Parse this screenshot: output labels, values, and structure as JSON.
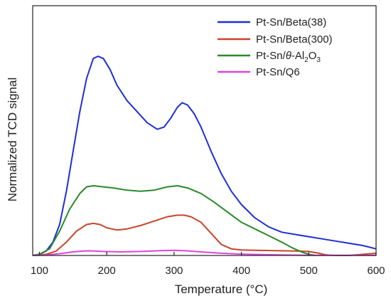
{
  "chart_data": {
    "type": "line",
    "title": "",
    "xlabel": "Temperature (°C)",
    "ylabel": "Normalized TCD signal",
    "xlim": [
      90,
      600
    ],
    "ylim": [
      0,
      1
    ],
    "x_ticks": [
      100,
      200,
      300,
      400,
      500,
      600
    ],
    "y_ticks": [],
    "grid": false,
    "legend_position": "top-right",
    "series": [
      {
        "name": "Pt-Sn/Beta(38)",
        "color": "#1f2fd6",
        "points": [
          [
            90,
            0
          ],
          [
            100,
            0.005
          ],
          [
            110,
            0.02
          ],
          [
            120,
            0.06
          ],
          [
            130,
            0.14
          ],
          [
            140,
            0.29
          ],
          [
            150,
            0.47
          ],
          [
            160,
            0.65
          ],
          [
            170,
            0.8
          ],
          [
            180,
            0.89
          ],
          [
            187,
            0.9
          ],
          [
            195,
            0.89
          ],
          [
            205,
            0.84
          ],
          [
            215,
            0.77
          ],
          [
            230,
            0.7
          ],
          [
            245,
            0.65
          ],
          [
            260,
            0.6
          ],
          [
            275,
            0.57
          ],
          [
            285,
            0.58
          ],
          [
            295,
            0.62
          ],
          [
            305,
            0.67
          ],
          [
            312,
            0.69
          ],
          [
            320,
            0.68
          ],
          [
            330,
            0.64
          ],
          [
            340,
            0.58
          ],
          [
            355,
            0.47
          ],
          [
            370,
            0.37
          ],
          [
            385,
            0.29
          ],
          [
            400,
            0.23
          ],
          [
            420,
            0.17
          ],
          [
            440,
            0.13
          ],
          [
            460,
            0.105
          ],
          [
            480,
            0.095
          ],
          [
            500,
            0.085
          ],
          [
            520,
            0.075
          ],
          [
            540,
            0.065
          ],
          [
            560,
            0.055
          ],
          [
            580,
            0.045
          ],
          [
            600,
            0.03
          ]
        ]
      },
      {
        "name": "Pt-Sn/Beta(300)",
        "color": "#c8452a",
        "points": [
          [
            90,
            0
          ],
          [
            110,
            0.005
          ],
          [
            125,
            0.02
          ],
          [
            140,
            0.06
          ],
          [
            155,
            0.11
          ],
          [
            170,
            0.14
          ],
          [
            180,
            0.145
          ],
          [
            190,
            0.14
          ],
          [
            200,
            0.125
          ],
          [
            215,
            0.115
          ],
          [
            230,
            0.12
          ],
          [
            250,
            0.135
          ],
          [
            270,
            0.155
          ],
          [
            290,
            0.175
          ],
          [
            305,
            0.182
          ],
          [
            315,
            0.182
          ],
          [
            325,
            0.175
          ],
          [
            340,
            0.15
          ],
          [
            355,
            0.1
          ],
          [
            370,
            0.05
          ],
          [
            385,
            0.03
          ],
          [
            400,
            0.025
          ],
          [
            420,
            0.023
          ],
          [
            450,
            0.022
          ],
          [
            480,
            0.02
          ],
          [
            500,
            0.018
          ],
          [
            515,
            0.01
          ],
          [
            525,
            0.003
          ],
          [
            540,
            0
          ],
          [
            560,
            0
          ],
          [
            580,
            0.005
          ],
          [
            600,
            0.01
          ]
        ]
      },
      {
        "name": "Pt-Sn/θ-Al2O3",
        "color": "#2a8a2a",
        "points": [
          [
            90,
            0
          ],
          [
            100,
            0.005
          ],
          [
            115,
            0.03
          ],
          [
            130,
            0.11
          ],
          [
            145,
            0.21
          ],
          [
            160,
            0.28
          ],
          [
            170,
            0.31
          ],
          [
            180,
            0.315
          ],
          [
            195,
            0.31
          ],
          [
            210,
            0.305
          ],
          [
            230,
            0.295
          ],
          [
            250,
            0.29
          ],
          [
            270,
            0.295
          ],
          [
            290,
            0.31
          ],
          [
            305,
            0.315
          ],
          [
            320,
            0.305
          ],
          [
            340,
            0.28
          ],
          [
            360,
            0.24
          ],
          [
            380,
            0.195
          ],
          [
            400,
            0.15
          ],
          [
            420,
            0.12
          ],
          [
            440,
            0.09
          ],
          [
            460,
            0.06
          ],
          [
            475,
            0.035
          ],
          [
            490,
            0.015
          ],
          [
            500,
            0.005
          ],
          [
            510,
            0
          ]
        ]
      },
      {
        "name": "Pt-Sn/Q6",
        "color": "#e044e0",
        "points": [
          [
            90,
            0
          ],
          [
            110,
            0.002
          ],
          [
            130,
            0.008
          ],
          [
            150,
            0.016
          ],
          [
            165,
            0.02
          ],
          [
            175,
            0.021
          ],
          [
            195,
            0.018
          ],
          [
            220,
            0.016
          ],
          [
            250,
            0.018
          ],
          [
            280,
            0.022
          ],
          [
            300,
            0.023
          ],
          [
            320,
            0.021
          ],
          [
            340,
            0.016
          ],
          [
            370,
            0.01
          ],
          [
            400,
            0.006
          ],
          [
            450,
            0.003
          ],
          [
            500,
            0.001
          ],
          [
            550,
            0.001
          ],
          [
            600,
            0.001
          ]
        ]
      }
    ]
  },
  "legend": [
    {
      "name": "Pt-Sn/Beta(38)",
      "color": "#1f2fd6"
    },
    {
      "name": "Pt-Sn/Beta(300)",
      "color": "#c8452a"
    },
    {
      "name_prefix": "Pt-Sn/",
      "name_theta": "θ",
      "name_al": "-Al",
      "name_sub2": "2",
      "name_o": "O",
      "name_sub3": "3",
      "color": "#2a8a2a"
    },
    {
      "name": "Pt-Sn/Q6",
      "color": "#e044e0"
    }
  ]
}
